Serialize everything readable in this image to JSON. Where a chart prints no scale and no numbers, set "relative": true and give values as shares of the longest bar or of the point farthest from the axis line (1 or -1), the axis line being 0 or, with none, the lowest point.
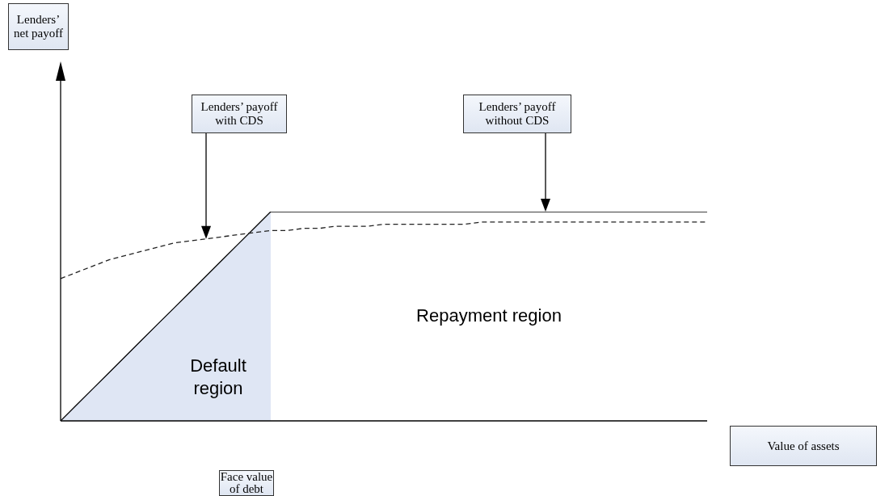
{
  "chart_data": {
    "type": "line",
    "relative": true,
    "categories": [
      null,
      null,
      null,
      null,
      null,
      null,
      null,
      null,
      null,
      null,
      null,
      null,
      null,
      null,
      null,
      null,
      null,
      null,
      null,
      null,
      null,
      null,
      null,
      null,
      null,
      null,
      null,
      null,
      null,
      null,
      null,
      null,
      null,
      null,
      null,
      null,
      null,
      null,
      null,
      null,
      null
    ],
    "series": [
      {
        "type": "area",
        "color": "#dfe6f4",
        "values": [
          0,
          0.077,
          0.154,
          0.231,
          0.308,
          0.385,
          0.462,
          0.538,
          0.615,
          0.692,
          0.769,
          0.846,
          0.923,
          1,
          null,
          null,
          null,
          null,
          null,
          null,
          null,
          null,
          null,
          null,
          null,
          null,
          null,
          null,
          null,
          null,
          null,
          null,
          null,
          null,
          null,
          null,
          null,
          null,
          null,
          null,
          null
        ]
      },
      {
        "name": "Lenders’ payoff without CDS",
        "line_style": "solid",
        "color": "#000000",
        "values": [
          0,
          0.077,
          0.154,
          0.231,
          0.308,
          0.385,
          0.462,
          0.538,
          0.615,
          0.692,
          0.769,
          0.846,
          0.923,
          1,
          1,
          1,
          1,
          1,
          1,
          1,
          1,
          1,
          1,
          1,
          1,
          1,
          1,
          1,
          1,
          1,
          1,
          1,
          1,
          1,
          1,
          1,
          1,
          1,
          1,
          1,
          1
        ]
      },
      {
        "name": "Lenders’ payoff with CDS",
        "line_style": "dashed",
        "color": "#222222",
        "values": [
          0.68,
          0.71,
          0.74,
          0.77,
          0.79,
          0.81,
          0.83,
          0.85,
          0.86,
          0.87,
          0.88,
          0.89,
          0.9,
          0.91,
          0.91,
          0.92,
          0.92,
          0.93,
          0.93,
          0.93,
          0.94,
          0.94,
          0.94,
          0.94,
          0.94,
          0.94,
          0.95,
          0.95,
          0.95,
          0.95,
          0.95,
          0.95,
          0.95,
          0.95,
          0.95,
          0.95,
          0.95,
          0.95,
          0.95,
          0.95,
          0.95
        ]
      }
    ],
    "annotations": [
      "Default region",
      "Repayment region",
      "Face value of debt",
      "Lenders’ net payoff",
      "Value of assets"
    ]
  }
}
